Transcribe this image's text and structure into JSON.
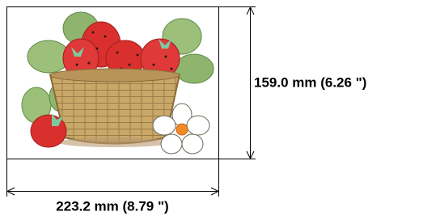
{
  "design": {
    "height_label": "159.0 mm (6.26 \")",
    "width_label": "223.2 mm (8.79 \")"
  }
}
